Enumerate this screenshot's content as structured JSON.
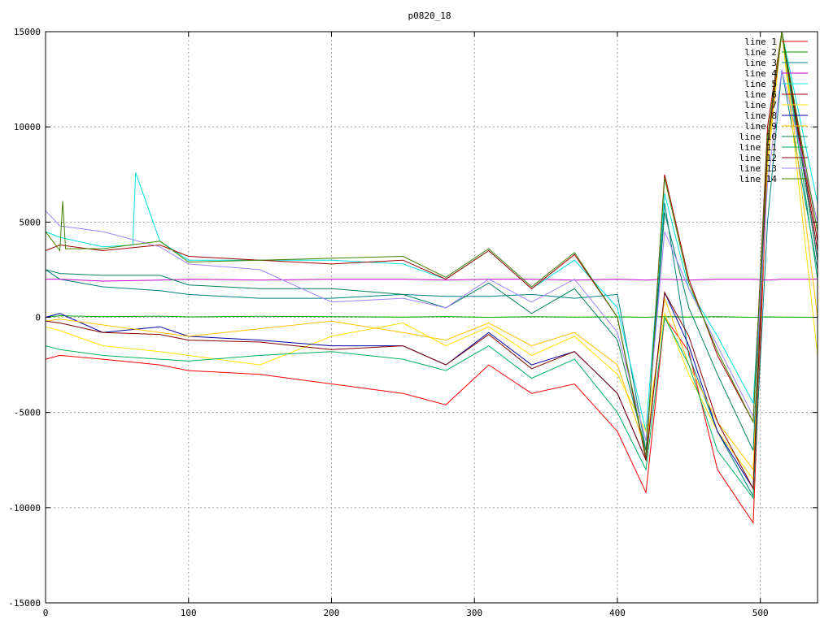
{
  "chart_data": {
    "type": "line",
    "title": "p0820_18",
    "xlabel": "",
    "ylabel": "",
    "xlim": [
      0,
      540
    ],
    "ylim": [
      -15000,
      15000
    ],
    "x_ticks": [
      0,
      100,
      200,
      300,
      400,
      500
    ],
    "y_ticks": [
      -15000,
      -10000,
      -5000,
      0,
      5000,
      10000,
      15000
    ],
    "x_tick_labels": [
      "0",
      "100",
      "200",
      "300",
      "400",
      "500"
    ],
    "y_tick_labels": [
      "-15000",
      "-10000",
      "-5000",
      "0",
      "5000",
      "10000",
      "15000"
    ],
    "grid": true,
    "legend_position": "top-right",
    "series": [
      {
        "name": "line 1",
        "color": "#ff0000",
        "x": [
          0,
          10,
          40,
          80,
          100,
          150,
          200,
          250,
          280,
          310,
          340,
          370,
          400,
          420,
          433,
          450,
          470,
          495,
          505,
          515,
          540
        ],
        "y": [
          -2200,
          -2000,
          -2200,
          -2500,
          -2800,
          -3000,
          -3500,
          -4000,
          -4600,
          -2500,
          -4000,
          -3500,
          -6000,
          -9200,
          0,
          -1800,
          -8000,
          -10800,
          8000,
          15000,
          3000
        ]
      },
      {
        "name": "line 2",
        "color": "#00a000",
        "x": [
          0,
          10,
          40,
          80,
          100,
          150,
          200,
          250,
          280,
          310,
          340,
          370,
          400,
          420,
          433,
          450,
          470,
          495,
          505,
          515,
          540
        ],
        "y": [
          0,
          80,
          30,
          60,
          20,
          50,
          30,
          10,
          40,
          0,
          30,
          10,
          20,
          0,
          40,
          10,
          30,
          0,
          20,
          10,
          0
        ]
      },
      {
        "name": "line 3",
        "color": "#008080",
        "x": [
          0,
          10,
          40,
          80,
          100,
          150,
          200,
          250,
          280,
          310,
          340,
          370,
          400,
          420,
          433,
          450,
          470,
          495,
          505,
          515,
          540
        ],
        "y": [
          2500,
          2000,
          1600,
          1400,
          1200,
          1000,
          1000,
          1200,
          1100,
          1100,
          1200,
          1000,
          1200,
          -7000,
          6000,
          -2000,
          -6000,
          -9400,
          5000,
          13000,
          2500
        ]
      },
      {
        "name": "line 4",
        "color": "#c000c0",
        "x": [
          0,
          10,
          40,
          80,
          100,
          150,
          200,
          250,
          280,
          310,
          340,
          370,
          400,
          420,
          433,
          450,
          470,
          495,
          505,
          515,
          540
        ],
        "y": [
          2000,
          2000,
          1900,
          1950,
          2000,
          1950,
          2000,
          2000,
          1950,
          2000,
          2000,
          1950,
          2000,
          1950,
          2000,
          1950,
          2000,
          2000,
          1950,
          2000,
          2000
        ]
      },
      {
        "name": "line 5",
        "color": "#00e0e0",
        "x": [
          0,
          10,
          40,
          61,
          63,
          80,
          100,
          150,
          200,
          250,
          280,
          310,
          340,
          370,
          400,
          420,
          433,
          450,
          470,
          495,
          505,
          515,
          540
        ],
        "y": [
          4500,
          4200,
          3700,
          3800,
          7600,
          4000,
          3000,
          3000,
          3000,
          2800,
          2000,
          3500,
          1500,
          3000,
          500,
          -6000,
          6500,
          1500,
          -1000,
          -4500,
          8000,
          15000,
          6000
        ]
      },
      {
        "name": "line 6",
        "color": "#a00000",
        "x": [
          0,
          10,
          40,
          80,
          100,
          150,
          200,
          250,
          280,
          310,
          340,
          370,
          400,
          420,
          433,
          450,
          470,
          495,
          505,
          515,
          540
        ],
        "y": [
          3500,
          3800,
          3500,
          3800,
          3200,
          3000,
          2800,
          3000,
          2000,
          3500,
          1500,
          3300,
          0,
          -7500,
          7500,
          2000,
          -2000,
          -5500,
          10000,
          15000,
          4000
        ]
      },
      {
        "name": "line 7",
        "color": "#ffe000",
        "x": [
          0,
          10,
          40,
          80,
          100,
          150,
          200,
          250,
          280,
          310,
          340,
          370,
          400,
          420,
          433,
          450,
          470,
          495,
          505,
          515,
          540
        ],
        "y": [
          -500,
          -700,
          -1500,
          -1800,
          -2000,
          -2500,
          -1000,
          -300,
          -1500,
          -500,
          -2000,
          -1000,
          -3000,
          -6000,
          200,
          -3000,
          -6000,
          -8500,
          8000,
          15000,
          -2000
        ]
      },
      {
        "name": "line 8",
        "color": "#0000a0",
        "x": [
          0,
          10,
          40,
          80,
          100,
          150,
          200,
          250,
          280,
          310,
          340,
          370,
          400,
          420,
          433,
          450,
          470,
          495,
          505,
          515,
          540
        ],
        "y": [
          0,
          200,
          -800,
          -500,
          -1000,
          -1200,
          -1500,
          -1500,
          -2500,
          -800,
          -2500,
          -1800,
          -4000,
          -7500,
          1300,
          -1500,
          -6000,
          -9000,
          9000,
          15000,
          3000
        ]
      },
      {
        "name": "line 9",
        "color": "#ffc000",
        "x": [
          0,
          10,
          40,
          80,
          100,
          150,
          200,
          250,
          280,
          310,
          340,
          370,
          400,
          420,
          433,
          450,
          470,
          495,
          505,
          515,
          540
        ],
        "y": [
          -200,
          -100,
          -400,
          -800,
          -1000,
          -600,
          -200,
          -800,
          -1200,
          -300,
          -1500,
          -800,
          -2500,
          -7000,
          1000,
          -2500,
          -5500,
          -8000,
          8500,
          15000,
          0
        ]
      },
      {
        "name": "line 10",
        "color": "#008060",
        "x": [
          0,
          10,
          40,
          80,
          100,
          150,
          200,
          250,
          280,
          310,
          340,
          370,
          400,
          420,
          433,
          450,
          470,
          495,
          505,
          515,
          540
        ],
        "y": [
          2500,
          2300,
          2200,
          2200,
          1700,
          1500,
          1500,
          1200,
          500,
          1800,
          200,
          1500,
          -1200,
          -7000,
          5500,
          500,
          -3000,
          -7000,
          9000,
          15000,
          3000
        ]
      },
      {
        "name": "line 11",
        "color": "#00b060",
        "x": [
          0,
          10,
          40,
          80,
          100,
          150,
          200,
          250,
          280,
          310,
          340,
          370,
          400,
          420,
          433,
          450,
          470,
          495,
          505,
          515,
          540
        ],
        "y": [
          -1500,
          -1700,
          -2000,
          -2200,
          -2300,
          -2000,
          -1800,
          -2200,
          -2800,
          -1500,
          -3200,
          -2200,
          -5000,
          -8000,
          0,
          -2500,
          -7000,
          -9500,
          9000,
          15000,
          2000
        ]
      },
      {
        "name": "line 12",
        "color": "#800000",
        "x": [
          0,
          10,
          40,
          80,
          100,
          150,
          200,
          250,
          280,
          310,
          340,
          370,
          400,
          420,
          433,
          450,
          470,
          495,
          505,
          515,
          540
        ],
        "y": [
          -200,
          -300,
          -800,
          -900,
          -1200,
          -1300,
          -1700,
          -1500,
          -2500,
          -900,
          -2700,
          -1800,
          -4000,
          -7500,
          1300,
          -1000,
          -5500,
          -9000,
          9000,
          15000,
          3500
        ]
      },
      {
        "name": "line 13",
        "color": "#a080ff",
        "x": [
          0,
          10,
          40,
          80,
          100,
          150,
          200,
          250,
          280,
          310,
          340,
          370,
          400,
          420,
          433,
          450,
          470,
          495,
          505,
          515,
          540
        ],
        "y": [
          5600,
          4800,
          4500,
          3700,
          2800,
          2500,
          800,
          1000,
          500,
          2000,
          800,
          2000,
          -800,
          -6500,
          4500,
          1500,
          -1500,
          -5200,
          7000,
          13000,
          5000
        ]
      },
      {
        "name": "line 14",
        "color": "#408000",
        "x": [
          0,
          10,
          12,
          14,
          40,
          80,
          100,
          150,
          200,
          250,
          280,
          310,
          340,
          370,
          400,
          420,
          433,
          450,
          470,
          495,
          505,
          515,
          540
        ],
        "y": [
          4500,
          3500,
          6100,
          3600,
          3600,
          4000,
          2900,
          3000,
          3100,
          3200,
          2100,
          3600,
          1600,
          3400,
          0,
          -7300,
          7300,
          1800,
          -1800,
          -5500,
          9500,
          15000,
          4500
        ]
      }
    ]
  }
}
